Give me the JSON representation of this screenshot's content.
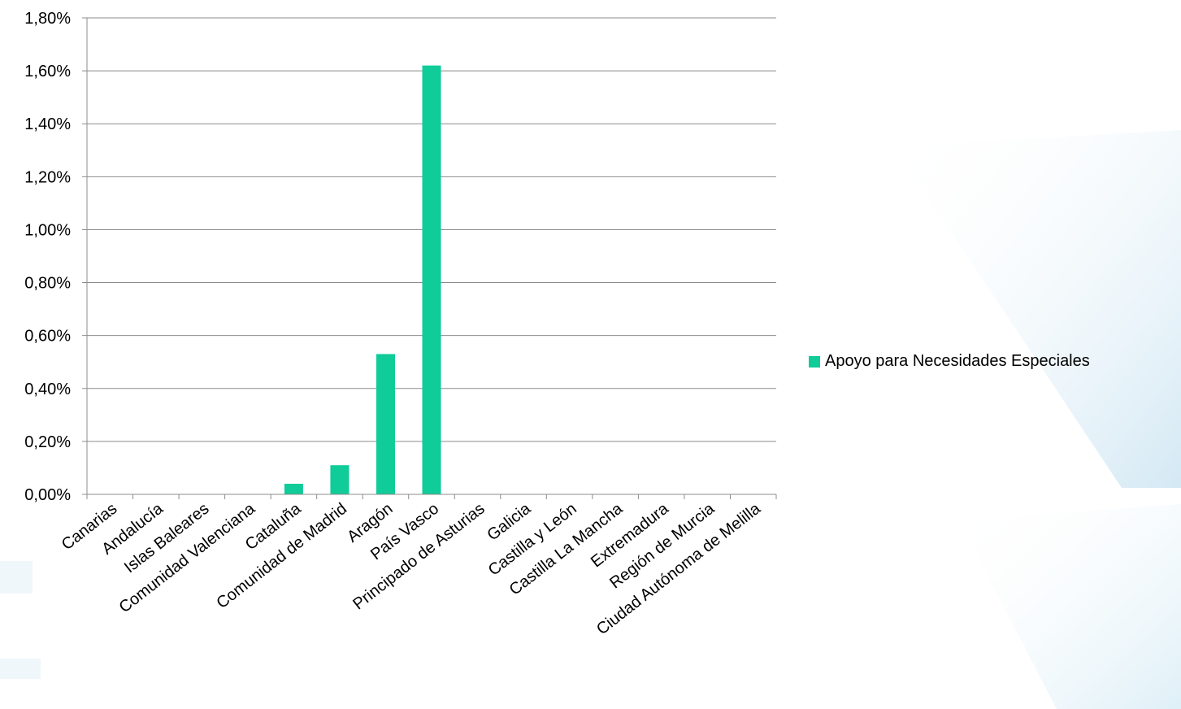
{
  "colors": {
    "bar": "#0fcc98",
    "grid": "#8c8c8c",
    "axis": "#8c8c8c",
    "background_accent": "#d8ecf6"
  },
  "legend": {
    "label": "Apoyo para Necesidades Especiales",
    "position": "right"
  },
  "chart_data": {
    "type": "bar",
    "categories": [
      "Canarias",
      "Andalucía",
      "Islas Baleares",
      "Comunidad Valenciana",
      "Cataluña",
      "Comunidad de Madrid",
      "Aragón",
      "País Vasco",
      "Principado de Asturias",
      "Galicia",
      "Castilla y León",
      "Castilla La Mancha",
      "Extremadura",
      "Región de Murcia",
      "Ciudad Autónoma de Melilla"
    ],
    "series": [
      {
        "name": "Apoyo para Necesidades Especiales",
        "values": [
          0,
          0,
          0,
          0,
          0.04,
          0.11,
          0.53,
          1.62,
          0,
          0,
          0,
          0,
          0,
          0,
          0
        ]
      }
    ],
    "ylim": [
      0,
      1.8
    ],
    "yticks": [
      "0,00%",
      "0,20%",
      "0,40%",
      "0,60%",
      "0,80%",
      "1,00%",
      "1,20%",
      "1,40%",
      "1,60%",
      "1,80%"
    ],
    "ytick_values": [
      0,
      0.2,
      0.4,
      0.6,
      0.8,
      1.0,
      1.2,
      1.4,
      1.6,
      1.8
    ],
    "grid": true,
    "legend_placement": "right"
  }
}
